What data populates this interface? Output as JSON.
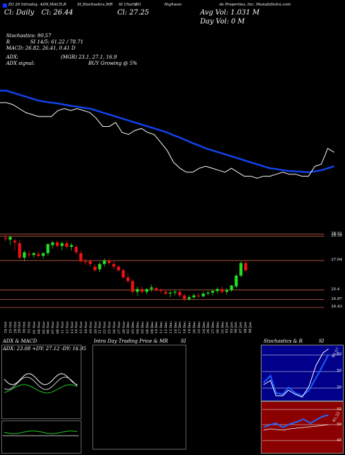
{
  "header": {
    "logo_color": "#1133ff",
    "top_line": [
      "ZG 20 Intraday",
      "ADX,MACD,B",
      "SI,Stochastics,MR",
      "SI Charts",
      "ZG",
      "Highwoo",
      "ds Properties, Inc. MunafaSutra.com"
    ],
    "price_line": [
      "Cl: Daily",
      "Cl: 26.44",
      "Cl: 27.25"
    ],
    "avg_vol": "Avg Vol: 1.031 M",
    "day_vol": "Day Vol: 0   M",
    "stochastics": "Stochastics: 90.57",
    "rsi": "SI 14/5: 61.22 / 78.71",
    "rsi_prefix": "R",
    "macd": "MACD: 26.82, 26.41, 0.41 D",
    "adx_label": "ADX:",
    "adx_values": "(MGR) 23.1, 27.1, 16.9",
    "adx_signal_label": "ADX  signal:",
    "adx_signal": "BUY Growing @ 5%"
  },
  "lower": {
    "adx_title": "ADX  & MACD",
    "adx_line": "ADX: 23.08  +DY: 27.12  -DY: 16.95",
    "intraday_title": "Intra  Day Trading Price  & MR",
    "si_label": "SI",
    "stoch_title": "Stochastics & R",
    "stoch_si": "SI",
    "stoch_ticks": [
      "80",
      "50",
      "20"
    ],
    "rsi_ticks": [
      "55",
      "50",
      "45"
    ],
    "stoch_val": "90.57",
    "rsi_val": "61.22"
  },
  "chart_data": {
    "type": "candlestick",
    "title": "",
    "price_ticks": [
      "28.51",
      "28.39",
      "27.04",
      "25.4",
      "24.87",
      "24.43"
    ],
    "price_tick_values": [
      28.51,
      28.39,
      27.04,
      25.4,
      24.87,
      24.43
    ],
    "ylim": [
      24.2,
      28.8
    ],
    "dates": [
      "24 Oct",
      "25 Oct",
      "28 Oct",
      "29 Oct",
      "30 Oct",
      "31 Oct",
      "01 Nov",
      "04 Nov",
      "05 Nov",
      "06 Nov",
      "07 Nov",
      "08 Nov",
      "11 Nov",
      "12 Nov",
      "13 Nov",
      "14 Nov",
      "15 Nov",
      "18 Nov",
      "19 Nov",
      "20 Nov",
      "21 Nov",
      "22 Nov",
      "25 Nov",
      "26 Nov",
      "27 Nov",
      "29 Nov",
      "02 Dec",
      "03 Dec",
      "04 Dec",
      "05 Dec",
      "06 Dec",
      "09 Dec",
      "10 Dec",
      "11 Dec",
      "12 Dec",
      "13 Dec",
      "16 Dec",
      "17 Dec",
      "18 Dec",
      "19 Dec",
      "20 Dec",
      "23 Dec",
      "24 Dec",
      "26 Dec",
      "27 Dec",
      "30 Dec",
      "31 Dec",
      "02 Jan",
      "03 Jan",
      "06 Jan",
      "07 Jan",
      "08 Jan",
      "09 Jan"
    ],
    "candles": [
      {
        "o": 28.3,
        "h": 28.45,
        "l": 28.1,
        "c": 28.25
      },
      {
        "o": 28.2,
        "h": 28.4,
        "l": 27.9,
        "c": 28.35
      },
      {
        "o": 28.15,
        "h": 28.25,
        "l": 27.6,
        "c": 28.05
      },
      {
        "o": 28.0,
        "h": 28.2,
        "l": 27.1,
        "c": 27.2
      },
      {
        "o": 27.2,
        "h": 27.6,
        "l": 27.0,
        "c": 27.5
      },
      {
        "o": 27.4,
        "h": 27.6,
        "l": 27.2,
        "c": 27.35
      },
      {
        "o": 27.35,
        "h": 27.5,
        "l": 27.2,
        "c": 27.45
      },
      {
        "o": 27.4,
        "h": 27.55,
        "l": 27.2,
        "c": 27.3
      },
      {
        "o": 27.3,
        "h": 27.5,
        "l": 27.15,
        "c": 27.45
      },
      {
        "o": 27.45,
        "h": 28.0,
        "l": 27.3,
        "c": 27.95
      },
      {
        "o": 27.9,
        "h": 28.1,
        "l": 27.7,
        "c": 28.05
      },
      {
        "o": 28.05,
        "h": 28.15,
        "l": 27.75,
        "c": 27.85
      },
      {
        "o": 27.85,
        "h": 28.1,
        "l": 27.6,
        "c": 28.0
      },
      {
        "o": 28.0,
        "h": 28.15,
        "l": 27.7,
        "c": 27.8
      },
      {
        "o": 27.8,
        "h": 28.0,
        "l": 27.6,
        "c": 27.9
      },
      {
        "o": 27.8,
        "h": 27.9,
        "l": 27.4,
        "c": 27.5
      },
      {
        "o": 27.45,
        "h": 27.6,
        "l": 26.9,
        "c": 27.0
      },
      {
        "o": 27.0,
        "h": 27.15,
        "l": 26.8,
        "c": 26.95
      },
      {
        "o": 27.0,
        "h": 27.1,
        "l": 26.7,
        "c": 26.85
      },
      {
        "o": 26.7,
        "h": 26.85,
        "l": 26.4,
        "c": 26.5
      },
      {
        "o": 26.55,
        "h": 26.95,
        "l": 26.4,
        "c": 26.85
      },
      {
        "o": 26.85,
        "h": 27.15,
        "l": 26.7,
        "c": 27.05
      },
      {
        "o": 27.05,
        "h": 27.15,
        "l": 26.8,
        "c": 26.9
      },
      {
        "o": 26.85,
        "h": 27.0,
        "l": 26.55,
        "c": 26.7
      },
      {
        "o": 26.7,
        "h": 26.8,
        "l": 26.4,
        "c": 26.5
      },
      {
        "o": 26.5,
        "h": 26.6,
        "l": 26.0,
        "c": 26.1
      },
      {
        "o": 26.1,
        "h": 26.3,
        "l": 25.8,
        "c": 25.9
      },
      {
        "o": 25.9,
        "h": 26.0,
        "l": 25.2,
        "c": 25.3
      },
      {
        "o": 25.3,
        "h": 25.6,
        "l": 25.1,
        "c": 25.45
      },
      {
        "o": 25.45,
        "h": 25.6,
        "l": 25.2,
        "c": 25.3
      },
      {
        "o": 25.3,
        "h": 25.5,
        "l": 25.15,
        "c": 25.45
      },
      {
        "o": 25.45,
        "h": 25.7,
        "l": 25.3,
        "c": 25.55
      },
      {
        "o": 25.5,
        "h": 25.6,
        "l": 25.3,
        "c": 25.4
      },
      {
        "o": 25.4,
        "h": 25.5,
        "l": 25.2,
        "c": 25.35
      },
      {
        "o": 25.3,
        "h": 25.4,
        "l": 25.1,
        "c": 25.2
      },
      {
        "o": 25.2,
        "h": 25.35,
        "l": 25.0,
        "c": 25.25
      },
      {
        "o": 25.25,
        "h": 25.4,
        "l": 25.1,
        "c": 25.3
      },
      {
        "o": 25.3,
        "h": 25.4,
        "l": 25.0,
        "c": 25.1
      },
      {
        "o": 25.1,
        "h": 25.2,
        "l": 24.8,
        "c": 24.9
      },
      {
        "o": 24.9,
        "h": 25.1,
        "l": 24.8,
        "c": 25.0
      },
      {
        "o": 25.0,
        "h": 25.2,
        "l": 24.9,
        "c": 25.1
      },
      {
        "o": 25.1,
        "h": 25.25,
        "l": 24.95,
        "c": 25.05
      },
      {
        "o": 25.05,
        "h": 25.3,
        "l": 25.0,
        "c": 25.2
      },
      {
        "o": 25.2,
        "h": 25.35,
        "l": 25.1,
        "c": 25.25
      },
      {
        "o": 25.25,
        "h": 25.4,
        "l": 25.1,
        "c": 25.35
      },
      {
        "o": 25.35,
        "h": 25.55,
        "l": 25.2,
        "c": 25.45
      },
      {
        "o": 25.45,
        "h": 25.6,
        "l": 25.2,
        "c": 25.3
      },
      {
        "o": 25.3,
        "h": 25.5,
        "l": 25.15,
        "c": 25.4
      },
      {
        "o": 25.4,
        "h": 25.7,
        "l": 25.3,
        "c": 25.65
      },
      {
        "o": 25.6,
        "h": 26.3,
        "l": 25.5,
        "c": 26.2
      },
      {
        "o": 26.2,
        "h": 27.0,
        "l": 26.1,
        "c": 26.9
      },
      {
        "o": 26.9,
        "h": 27.1,
        "l": 26.4,
        "c": 26.5
      }
    ],
    "price_line": [
      27.7,
      27.7,
      27.65,
      27.55,
      27.45,
      27.4,
      27.35,
      27.35,
      27.35,
      27.5,
      27.55,
      27.5,
      27.55,
      27.5,
      27.45,
      27.3,
      27.1,
      27.1,
      27.2,
      26.95,
      26.9,
      27.0,
      27.05,
      26.95,
      26.9,
      26.7,
      26.5,
      26.2,
      26.05,
      25.95,
      25.95,
      26.05,
      26.1,
      26.05,
      26.0,
      25.95,
      26.05,
      25.95,
      25.85,
      25.85,
      25.8,
      25.85,
      25.85,
      25.9,
      25.95,
      25.9,
      25.9,
      25.85,
      25.85,
      26.1,
      26.15,
      26.55,
      26.45
    ],
    "ma_line": [
      28.0,
      28.0,
      27.95,
      27.9,
      27.85,
      27.8,
      27.75,
      27.72,
      27.7,
      27.68,
      27.65,
      27.62,
      27.6,
      27.57,
      27.55,
      27.5,
      27.45,
      27.4,
      27.35,
      27.3,
      27.25,
      27.2,
      27.15,
      27.1,
      27.05,
      27.0,
      26.95,
      26.88,
      26.82,
      26.75,
      26.68,
      26.62,
      26.55,
      26.5,
      26.45,
      26.4,
      26.35,
      26.3,
      26.25,
      26.2,
      26.15,
      26.1,
      26.05,
      26.03,
      26.0,
      25.98,
      25.97,
      25.96,
      25.95,
      25.97,
      26.0,
      26.05,
      26.1
    ]
  }
}
